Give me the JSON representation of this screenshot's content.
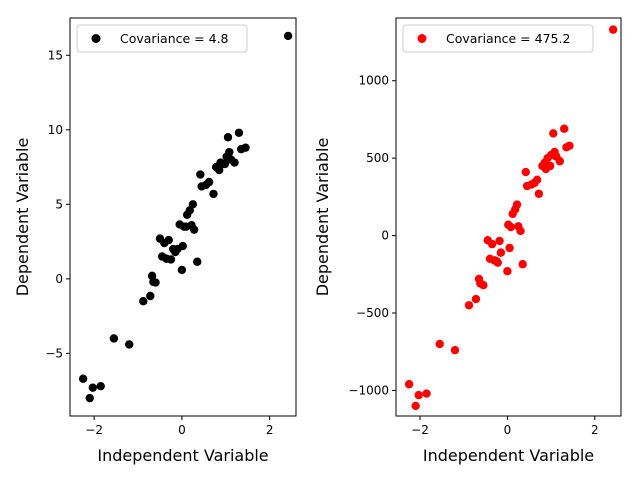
{
  "chart_data": [
    {
      "type": "scatter",
      "xlabel": "Independent Variable",
      "ylabel": "Dependent Variable",
      "xlim": [
        -2.55,
        2.6
      ],
      "ylim": [
        -9.2,
        17.5
      ],
      "xticks": [
        -2,
        0,
        2
      ],
      "xtick_labels": [
        "−2",
        "0",
        "2"
      ],
      "yticks": [
        -5,
        0,
        5,
        10,
        15
      ],
      "ytick_labels": [
        "−5",
        "0",
        "5",
        "10",
        "15"
      ],
      "grid": false,
      "legend": {
        "position": "top-left",
        "entries": [
          "Covariance = 4.8"
        ]
      },
      "series": [
        {
          "name": "Covariance = 4.8",
          "color": "#000000",
          "x": [
            -2.25,
            -2.1,
            -2.03,
            -1.85,
            -1.55,
            -1.2,
            -0.88,
            -0.72,
            -0.68,
            -0.65,
            -0.6,
            -0.5,
            -0.45,
            -0.4,
            -0.35,
            -0.3,
            -0.25,
            -0.2,
            -0.15,
            -0.1,
            -0.05,
            0.0,
            0.02,
            0.05,
            0.1,
            0.12,
            0.18,
            0.22,
            0.25,
            0.28,
            0.35,
            0.42,
            0.45,
            0.55,
            0.62,
            0.72,
            0.78,
            0.85,
            0.88,
            0.92,
            0.98,
            1.02,
            1.05,
            1.08,
            1.12,
            1.2,
            1.3,
            1.35,
            1.45,
            2.42
          ],
          "y": [
            -6.7,
            -8.0,
            -7.3,
            -7.2,
            -4.0,
            -4.4,
            -1.5,
            -1.15,
            0.2,
            -0.2,
            -0.25,
            2.7,
            1.5,
            2.4,
            1.35,
            2.6,
            1.3,
            2.0,
            1.8,
            2.0,
            3.65,
            0.6,
            2.2,
            3.5,
            3.5,
            4.3,
            4.6,
            3.6,
            5.0,
            3.3,
            1.15,
            7.0,
            6.2,
            6.3,
            6.5,
            5.7,
            7.5,
            7.3,
            7.8,
            7.7,
            7.7,
            8.2,
            9.5,
            8.5,
            8.0,
            7.8,
            9.8,
            8.7,
            8.8,
            16.3
          ]
        }
      ]
    },
    {
      "type": "scatter",
      "xlabel": "Independent Variable",
      "ylabel": "Dependent Variable",
      "xlim": [
        -2.55,
        2.6
      ],
      "ylim": [
        -1165,
        1405
      ],
      "xticks": [
        -2,
        0,
        2
      ],
      "xtick_labels": [
        "−2",
        "0",
        "2"
      ],
      "yticks": [
        -1000,
        -500,
        0,
        500,
        1000
      ],
      "ytick_labels": [
        "−1000",
        "−500",
        "0",
        "500",
        "1000"
      ],
      "grid": false,
      "legend": {
        "position": "top-left",
        "entries": [
          "Covariance = 475.2"
        ]
      },
      "series": [
        {
          "name": "Covariance = 475.2",
          "color": "#ff0000",
          "x": [
            -2.25,
            -2.1,
            -2.03,
            -1.85,
            -1.55,
            -1.2,
            -0.88,
            -0.72,
            -0.65,
            -0.62,
            -0.55,
            -0.45,
            -0.4,
            -0.35,
            -0.3,
            -0.25,
            -0.22,
            -0.18,
            -0.15,
            0.0,
            0.02,
            0.05,
            0.08,
            0.12,
            0.18,
            0.22,
            0.25,
            0.3,
            0.35,
            0.42,
            0.45,
            0.55,
            0.62,
            0.68,
            0.72,
            0.8,
            0.85,
            0.88,
            0.92,
            0.98,
            1.0,
            1.05,
            1.08,
            1.12,
            1.2,
            1.3,
            1.35,
            1.42,
            2.42
          ],
          "y": [
            -960,
            -1100,
            -1030,
            -1020,
            -700,
            -740,
            -450,
            -410,
            -280,
            -310,
            -320,
            -30,
            -150,
            -55,
            -160,
            -165,
            -175,
            -35,
            -110,
            -230,
            70,
            -80,
            55,
            140,
            170,
            200,
            60,
            30,
            -185,
            410,
            320,
            330,
            340,
            360,
            270,
            450,
            470,
            430,
            500,
            450,
            520,
            660,
            540,
            510,
            480,
            690,
            570,
            580,
            1330
          ]
        }
      ]
    }
  ]
}
